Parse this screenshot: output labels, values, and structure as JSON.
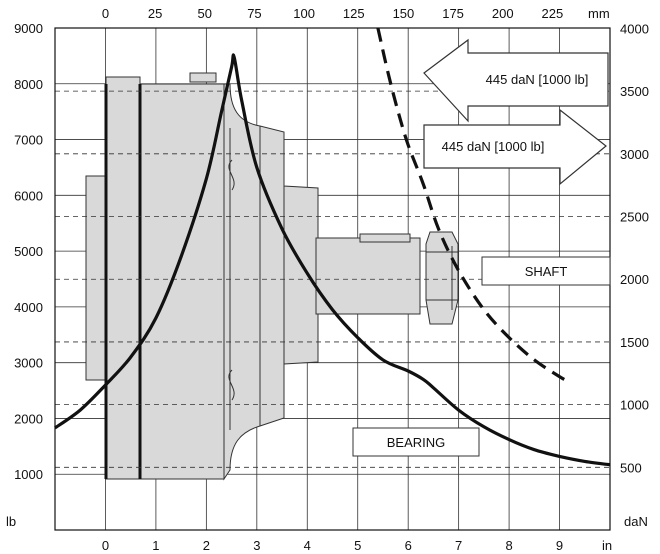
{
  "chart_data": {
    "type": "line",
    "x_axis_bottom": {
      "unit": "in",
      "range": [
        -1,
        10
      ],
      "ticks": [
        "0",
        "1",
        "2",
        "3",
        "4",
        "5",
        "6",
        "7",
        "8",
        "9"
      ]
    },
    "x_axis_top": {
      "unit": "mm",
      "ticks": [
        "0",
        "25",
        "50",
        "75",
        "100",
        "125",
        "150",
        "175",
        "200",
        "225"
      ]
    },
    "y_axis_left": {
      "unit": "lb",
      "range": [
        0,
        9000
      ],
      "ticks": [
        "1000",
        "2000",
        "3000",
        "4000",
        "5000",
        "6000",
        "7000",
        "8000",
        "9000"
      ]
    },
    "y_axis_right": {
      "unit": "daN",
      "ticks": [
        "500",
        "1000",
        "1500",
        "2000",
        "2500",
        "3000",
        "3500",
        "4000"
      ]
    },
    "grid": true,
    "series": [
      {
        "name": "BEARING",
        "style": "solid",
        "points": [
          [
            -1,
            1830
          ],
          [
            -0.5,
            2150
          ],
          [
            0,
            2600
          ],
          [
            0.5,
            3100
          ],
          [
            1,
            3800
          ],
          [
            1.5,
            4900
          ],
          [
            2,
            6300
          ],
          [
            2.3,
            7500
          ],
          [
            2.5,
            8300
          ],
          [
            2.55,
            8480
          ],
          [
            2.7,
            7700
          ],
          [
            3,
            6500
          ],
          [
            3.5,
            5400
          ],
          [
            4,
            4600
          ],
          [
            4.5,
            3950
          ],
          [
            5,
            3450
          ],
          [
            5.5,
            3050
          ],
          [
            6,
            2850
          ],
          [
            6.3,
            2700
          ],
          [
            6.5,
            2550
          ],
          [
            7,
            2150
          ],
          [
            7.5,
            1850
          ],
          [
            8,
            1620
          ],
          [
            8.5,
            1440
          ],
          [
            9,
            1320
          ],
          [
            9.5,
            1230
          ],
          [
            10,
            1170
          ]
        ]
      },
      {
        "name": "SHAFT",
        "style": "dashed",
        "points": [
          [
            5.4,
            9000
          ],
          [
            5.6,
            8200
          ],
          [
            5.8,
            7500
          ],
          [
            6,
            6900
          ],
          [
            6.3,
            6200
          ],
          [
            6.6,
            5400
          ],
          [
            7,
            4650
          ],
          [
            7.5,
            3950
          ],
          [
            8,
            3450
          ],
          [
            8.5,
            3050
          ],
          [
            9,
            2750
          ],
          [
            9.2,
            2650
          ]
        ]
      }
    ],
    "annotations": {
      "arrow_left_label": "445 daN [1000 lb]",
      "arrow_right_label": "445 daN [1000 lb]",
      "shaft_label": "SHAFT",
      "bearing_label": "BEARING"
    }
  }
}
